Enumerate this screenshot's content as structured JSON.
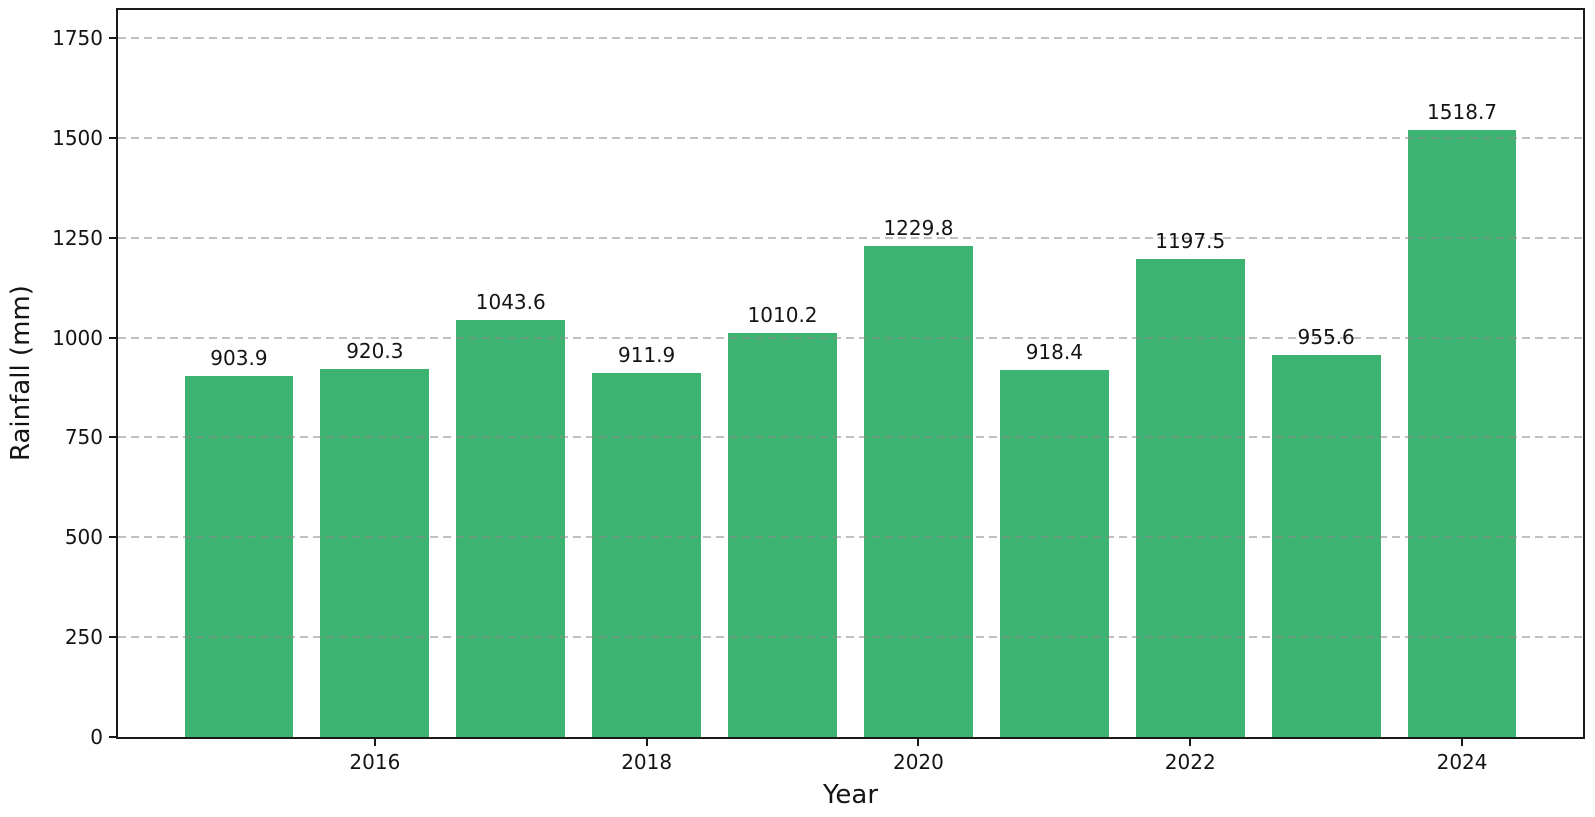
{
  "chart_data": {
    "type": "bar",
    "title": "",
    "xlabel": "Year",
    "ylabel": "Rainfall (mm)",
    "categories": [
      2015,
      2016,
      2017,
      2018,
      2019,
      2020,
      2021,
      2022,
      2023,
      2024
    ],
    "values": [
      903.9,
      920.3,
      1043.6,
      911.9,
      1010.2,
      1229.8,
      918.4,
      1197.5,
      955.6,
      1518.7
    ],
    "bar_labels": [
      "903.9",
      "920.3",
      "1043.6",
      "911.9",
      "1010.2",
      "1229.8",
      "918.4",
      "1197.5",
      "955.6",
      "1518.7"
    ],
    "xtick_labels": [
      "2016",
      "2018",
      "2020",
      "2022",
      "2024"
    ],
    "xticks": [
      2016,
      2018,
      2020,
      2022,
      2024
    ],
    "ytick_labels": [
      "0",
      "250",
      "500",
      "750",
      "1000",
      "1250",
      "1500",
      "1750"
    ],
    "yticks": [
      0,
      250,
      500,
      750,
      1000,
      1250,
      1500,
      1750
    ],
    "ylim": [
      0,
      1820
    ],
    "xlim": [
      2014.11,
      2024.89
    ],
    "bar_width_fraction": 0.8,
    "grid": "y-dashed",
    "legend": "none",
    "colors": {
      "bar": "#3cb371",
      "grid": "#b0b0b0",
      "spine": "#1a1a1a",
      "text": "#141414",
      "background": "#ffffff"
    }
  }
}
